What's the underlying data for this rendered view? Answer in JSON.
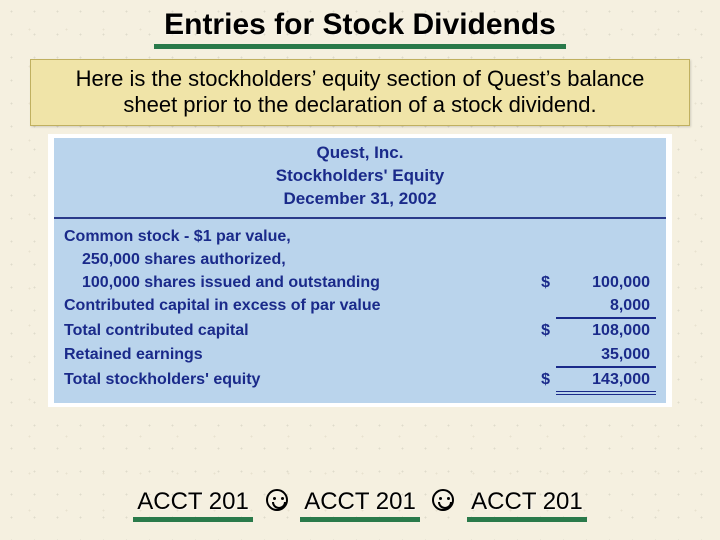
{
  "title": "Entries for Stock Dividends",
  "intro": "Here is the stockholders’ equity section of Quest’s balance sheet prior to the declaration of a stock dividend.",
  "colors": {
    "page_bg": "#f5f0e0",
    "intro_bg": "#f0e4a8",
    "table_bg": "#bad4ec",
    "table_text": "#1a2a8a",
    "rule_green": "#2a7a4a"
  },
  "statement": {
    "company": "Quest, Inc.",
    "heading": "Stockholders' Equity",
    "date": "December 31, 2002",
    "lines": {
      "l1": "Common stock - $1 par value,",
      "l2": "250,000 shares authorized,",
      "l3": "100,000 shares issued and outstanding",
      "l4": "Contributed capital in excess of par value",
      "l5": "Total contributed capital",
      "l6": "Retained earnings",
      "l7": "Total stockholders' equity"
    },
    "currency": "$",
    "values": {
      "common_stock": "100,000",
      "apic": "8,000",
      "total_contributed": "108,000",
      "retained_earnings": "35,000",
      "total_equity": "143,000"
    }
  },
  "footer_tag": "ACCT 201"
}
